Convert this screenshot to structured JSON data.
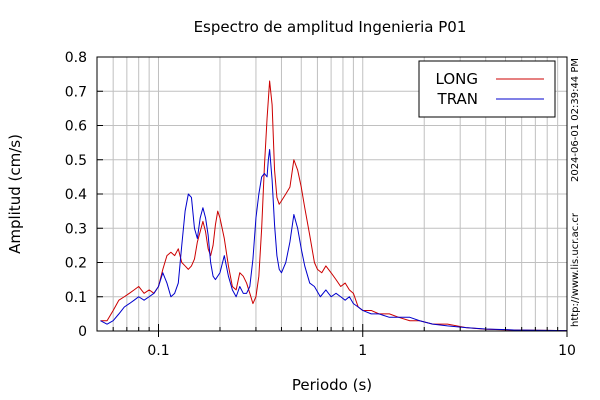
{
  "chart_data": {
    "type": "line",
    "title": "Espectro de amplitud Ingenieria P01",
    "xlabel": "Periodo (s)",
    "ylabel": "Amplitud (cm/s)",
    "x_scale": "log",
    "xlim": [
      0.05,
      10
    ],
    "ylim": [
      0,
      0.8
    ],
    "x_ticks": [
      {
        "value": 0.1,
        "label": "0.1"
      },
      {
        "value": 1,
        "label": "1"
      },
      {
        "value": 10,
        "label": "10"
      }
    ],
    "y_ticks": [
      {
        "value": 0,
        "label": "0"
      },
      {
        "value": 0.1,
        "label": "0.1"
      },
      {
        "value": 0.2,
        "label": "0.2"
      },
      {
        "value": 0.3,
        "label": "0.3"
      },
      {
        "value": 0.4,
        "label": "0.4"
      },
      {
        "value": 0.5,
        "label": "0.5"
      },
      {
        "value": 0.6,
        "label": "0.6"
      },
      {
        "value": 0.7,
        "label": "0.7"
      },
      {
        "value": 0.8,
        "label": "0.8"
      }
    ],
    "grid": true,
    "legend_position": "top-right",
    "annotations": [
      "2024-06-01 02:39:44 PM",
      "http://www.lis.ucr.ac.cr"
    ],
    "series": [
      {
        "name": "LONG",
        "color": "#cc0000",
        "points": [
          [
            0.052,
            0.03
          ],
          [
            0.056,
            0.03
          ],
          [
            0.06,
            0.06
          ],
          [
            0.064,
            0.09
          ],
          [
            0.068,
            0.1
          ],
          [
            0.072,
            0.11
          ],
          [
            0.076,
            0.12
          ],
          [
            0.08,
            0.13
          ],
          [
            0.085,
            0.11
          ],
          [
            0.09,
            0.12
          ],
          [
            0.095,
            0.11
          ],
          [
            0.1,
            0.13
          ],
          [
            0.105,
            0.18
          ],
          [
            0.11,
            0.22
          ],
          [
            0.115,
            0.23
          ],
          [
            0.12,
            0.22
          ],
          [
            0.125,
            0.24
          ],
          [
            0.13,
            0.2
          ],
          [
            0.135,
            0.19
          ],
          [
            0.14,
            0.18
          ],
          [
            0.145,
            0.19
          ],
          [
            0.15,
            0.21
          ],
          [
            0.155,
            0.26
          ],
          [
            0.16,
            0.29
          ],
          [
            0.165,
            0.32
          ],
          [
            0.17,
            0.29
          ],
          [
            0.175,
            0.24
          ],
          [
            0.18,
            0.22
          ],
          [
            0.185,
            0.25
          ],
          [
            0.19,
            0.31
          ],
          [
            0.195,
            0.35
          ],
          [
            0.2,
            0.33
          ],
          [
            0.21,
            0.27
          ],
          [
            0.22,
            0.19
          ],
          [
            0.23,
            0.13
          ],
          [
            0.24,
            0.12
          ],
          [
            0.25,
            0.17
          ],
          [
            0.26,
            0.16
          ],
          [
            0.27,
            0.14
          ],
          [
            0.28,
            0.11
          ],
          [
            0.29,
            0.08
          ],
          [
            0.3,
            0.1
          ],
          [
            0.31,
            0.16
          ],
          [
            0.32,
            0.3
          ],
          [
            0.33,
            0.48
          ],
          [
            0.34,
            0.62
          ],
          [
            0.35,
            0.73
          ],
          [
            0.36,
            0.66
          ],
          [
            0.37,
            0.47
          ],
          [
            0.38,
            0.39
          ],
          [
            0.39,
            0.37
          ],
          [
            0.4,
            0.38
          ],
          [
            0.42,
            0.4
          ],
          [
            0.44,
            0.42
          ],
          [
            0.46,
            0.5
          ],
          [
            0.48,
            0.47
          ],
          [
            0.5,
            0.42
          ],
          [
            0.52,
            0.36
          ],
          [
            0.55,
            0.28
          ],
          [
            0.58,
            0.2
          ],
          [
            0.6,
            0.18
          ],
          [
            0.63,
            0.17
          ],
          [
            0.66,
            0.19
          ],
          [
            0.7,
            0.17
          ],
          [
            0.74,
            0.15
          ],
          [
            0.78,
            0.13
          ],
          [
            0.82,
            0.14
          ],
          [
            0.86,
            0.12
          ],
          [
            0.9,
            0.11
          ],
          [
            0.95,
            0.07
          ],
          [
            1.0,
            0.06
          ],
          [
            1.1,
            0.06
          ],
          [
            1.2,
            0.05
          ],
          [
            1.35,
            0.05
          ],
          [
            1.5,
            0.04
          ],
          [
            1.7,
            0.03
          ],
          [
            1.9,
            0.03
          ],
          [
            2.2,
            0.02
          ],
          [
            2.6,
            0.02
          ],
          [
            3.2,
            0.01
          ],
          [
            4.0,
            0.005
          ],
          [
            5.5,
            0.003
          ],
          [
            10,
            0.001
          ]
        ]
      },
      {
        "name": "TRAN",
        "color": "#0000cc",
        "points": [
          [
            0.052,
            0.03
          ],
          [
            0.056,
            0.02
          ],
          [
            0.06,
            0.03
          ],
          [
            0.064,
            0.05
          ],
          [
            0.068,
            0.07
          ],
          [
            0.072,
            0.08
          ],
          [
            0.076,
            0.09
          ],
          [
            0.08,
            0.1
          ],
          [
            0.085,
            0.09
          ],
          [
            0.09,
            0.1
          ],
          [
            0.095,
            0.11
          ],
          [
            0.1,
            0.13
          ],
          [
            0.105,
            0.17
          ],
          [
            0.11,
            0.14
          ],
          [
            0.115,
            0.1
          ],
          [
            0.12,
            0.11
          ],
          [
            0.125,
            0.14
          ],
          [
            0.13,
            0.25
          ],
          [
            0.135,
            0.35
          ],
          [
            0.14,
            0.4
          ],
          [
            0.145,
            0.39
          ],
          [
            0.15,
            0.3
          ],
          [
            0.155,
            0.27
          ],
          [
            0.16,
            0.33
          ],
          [
            0.165,
            0.36
          ],
          [
            0.17,
            0.33
          ],
          [
            0.175,
            0.28
          ],
          [
            0.18,
            0.2
          ],
          [
            0.185,
            0.16
          ],
          [
            0.19,
            0.15
          ],
          [
            0.2,
            0.17
          ],
          [
            0.21,
            0.22
          ],
          [
            0.22,
            0.16
          ],
          [
            0.23,
            0.12
          ],
          [
            0.24,
            0.1
          ],
          [
            0.25,
            0.13
          ],
          [
            0.26,
            0.11
          ],
          [
            0.27,
            0.11
          ],
          [
            0.28,
            0.13
          ],
          [
            0.29,
            0.21
          ],
          [
            0.3,
            0.33
          ],
          [
            0.31,
            0.4
          ],
          [
            0.32,
            0.45
          ],
          [
            0.33,
            0.46
          ],
          [
            0.34,
            0.45
          ],
          [
            0.345,
            0.5
          ],
          [
            0.35,
            0.53
          ],
          [
            0.36,
            0.44
          ],
          [
            0.37,
            0.31
          ],
          [
            0.38,
            0.22
          ],
          [
            0.39,
            0.18
          ],
          [
            0.4,
            0.17
          ],
          [
            0.42,
            0.2
          ],
          [
            0.44,
            0.26
          ],
          [
            0.46,
            0.34
          ],
          [
            0.48,
            0.3
          ],
          [
            0.5,
            0.24
          ],
          [
            0.52,
            0.19
          ],
          [
            0.55,
            0.14
          ],
          [
            0.58,
            0.13
          ],
          [
            0.62,
            0.1
          ],
          [
            0.66,
            0.12
          ],
          [
            0.7,
            0.1
          ],
          [
            0.74,
            0.11
          ],
          [
            0.78,
            0.1
          ],
          [
            0.82,
            0.09
          ],
          [
            0.86,
            0.1
          ],
          [
            0.9,
            0.08
          ],
          [
            0.95,
            0.07
          ],
          [
            1.0,
            0.06
          ],
          [
            1.1,
            0.05
          ],
          [
            1.2,
            0.05
          ],
          [
            1.35,
            0.04
          ],
          [
            1.5,
            0.04
          ],
          [
            1.7,
            0.04
          ],
          [
            1.9,
            0.03
          ],
          [
            2.2,
            0.02
          ],
          [
            2.6,
            0.015
          ],
          [
            3.2,
            0.01
          ],
          [
            4.0,
            0.006
          ],
          [
            5.5,
            0.003
          ],
          [
            10,
            0.001
          ]
        ]
      }
    ]
  }
}
